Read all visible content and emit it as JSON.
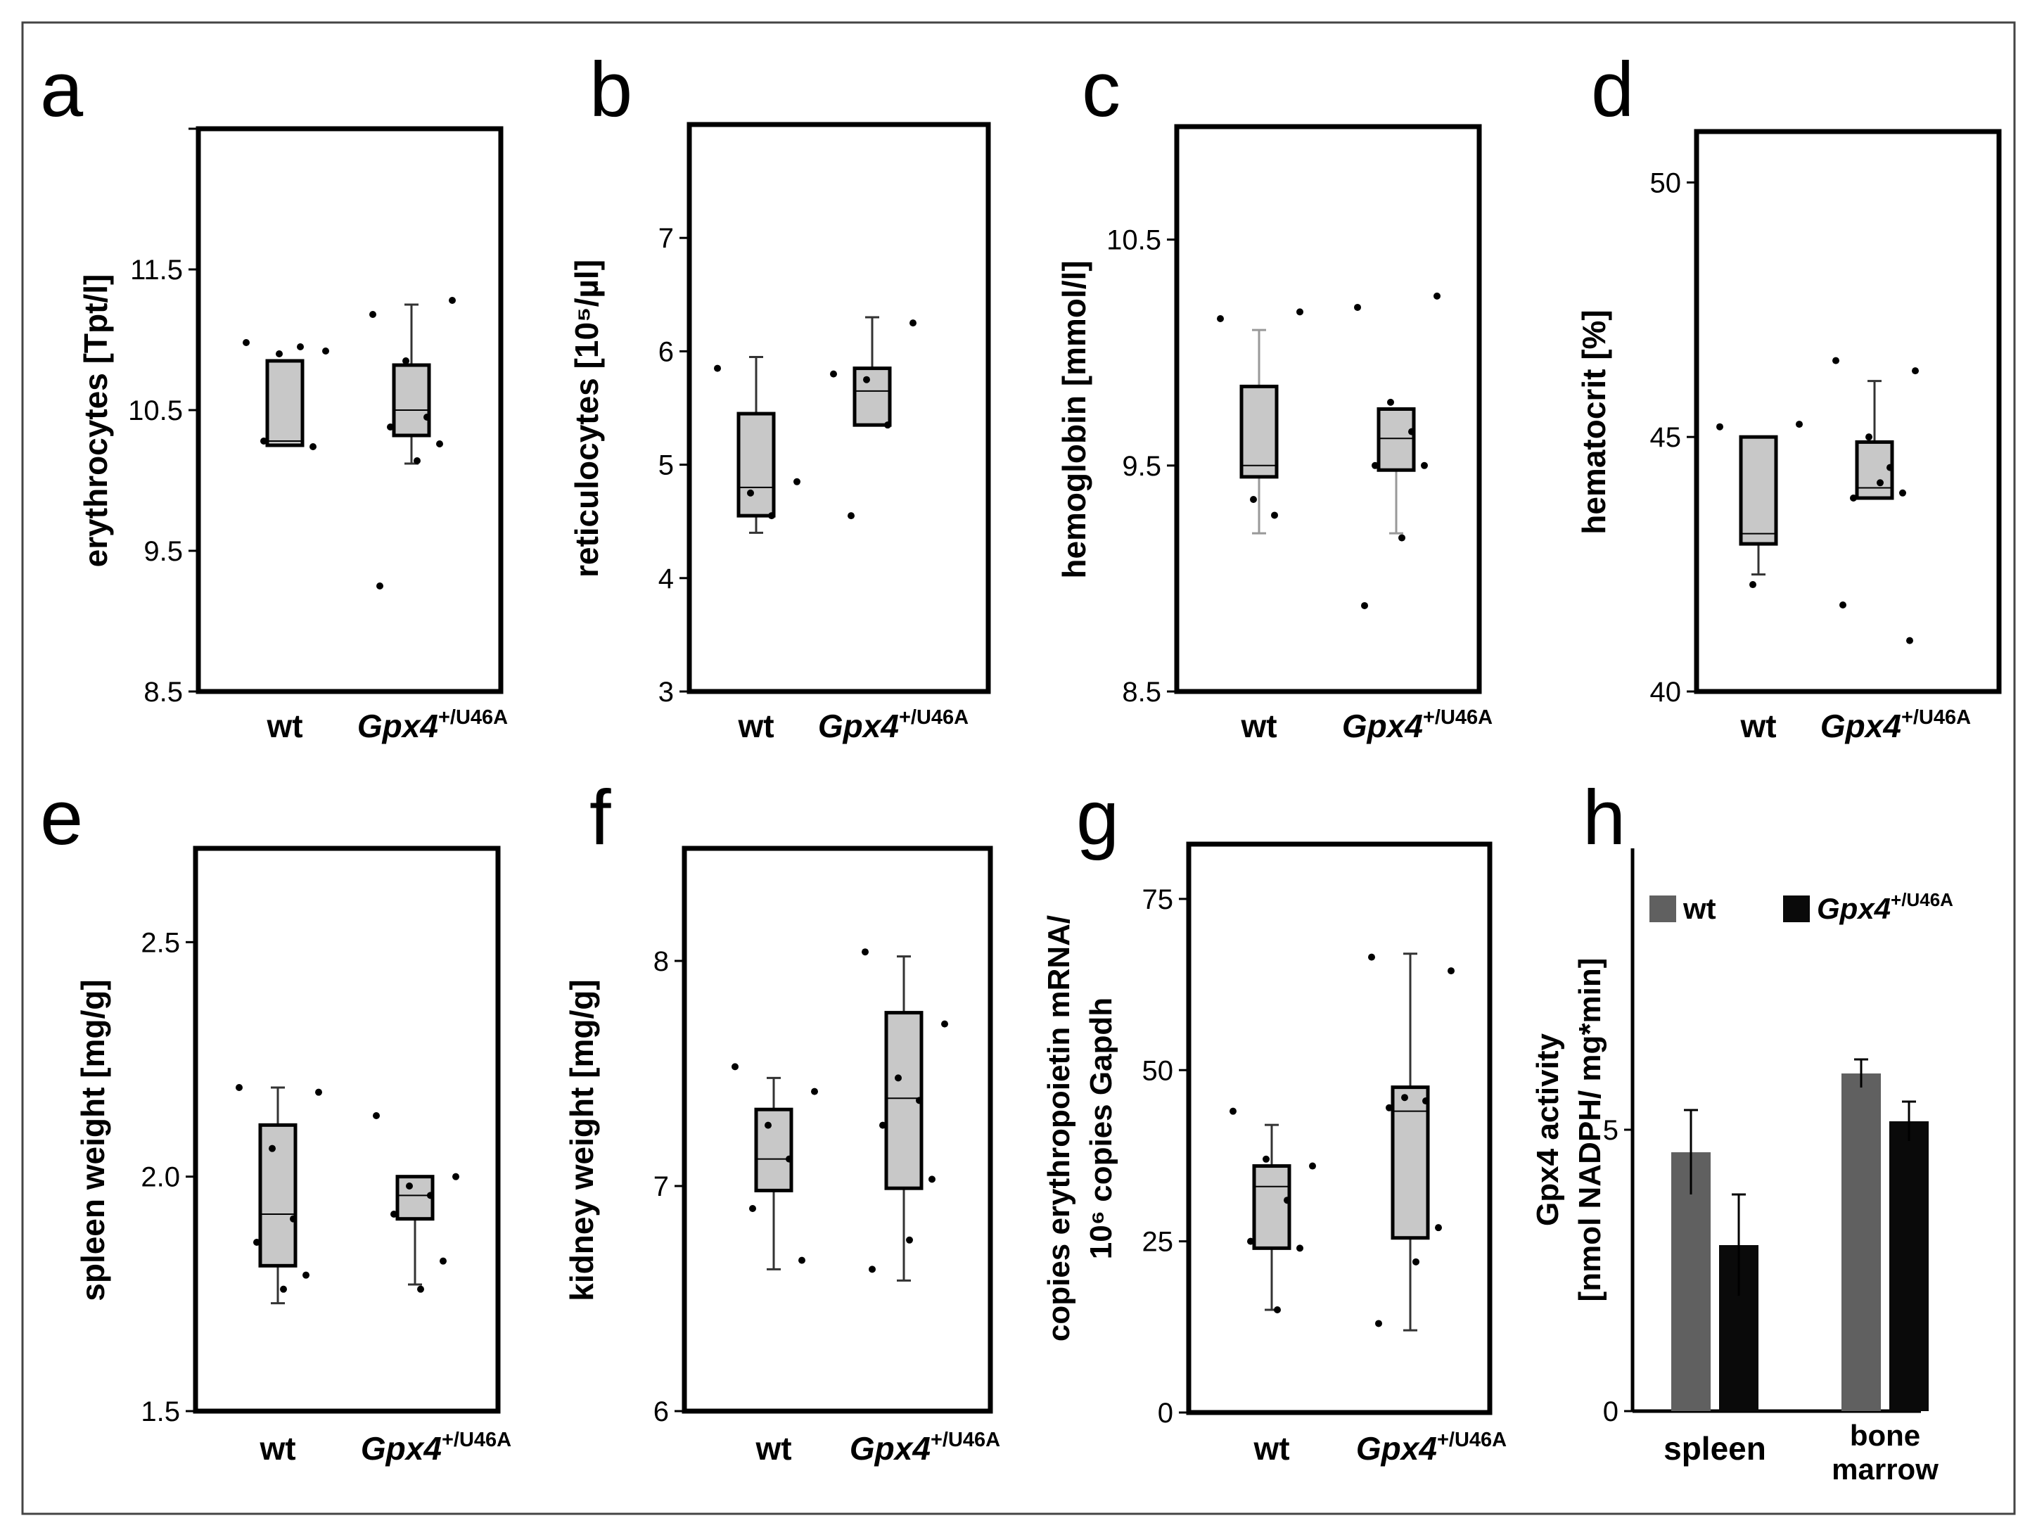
{
  "chart_data": [
    {
      "panel": "a",
      "type": "boxplot",
      "ylabel": "erythrocytes [Tpt/l]",
      "ylim": [
        8.5,
        12.5
      ],
      "yticks": [
        8.5,
        9.5,
        10.5,
        11.5
      ],
      "tick_decimals": 1,
      "extra_tick": 12.5,
      "groups": [
        {
          "label": "wt",
          "label_italic": false,
          "label_sup": "",
          "box": {
            "q1": 10.25,
            "median": 10.28,
            "q3": 10.85,
            "wlo": null,
            "whi": null
          },
          "points": [
            10.98,
            10.92,
            10.9,
            10.95,
            10.28,
            10.24
          ]
        },
        {
          "label": "Gpx4",
          "label_italic": true,
          "label_sup": "+/U46A",
          "box": {
            "q1": 10.32,
            "median": 10.5,
            "q3": 10.82,
            "wlo": 10.12,
            "whi": 11.25
          },
          "points": [
            11.18,
            11.28,
            10.85,
            10.45,
            10.38,
            10.26,
            10.14,
            9.25
          ]
        }
      ]
    },
    {
      "panel": "b",
      "type": "boxplot",
      "ylabel": "reticulocytes [10⁵/µl]",
      "ylim": [
        3,
        8
      ],
      "yticks": [
        3,
        4,
        5,
        6,
        7
      ],
      "tick_decimals": 0,
      "groups": [
        {
          "label": "wt",
          "label_italic": false,
          "label_sup": "",
          "box": {
            "q1": 4.55,
            "median": 4.8,
            "q3": 5.45,
            "wlo": 4.4,
            "whi": 5.95
          },
          "points": [
            5.85,
            4.85,
            4.75,
            4.55
          ]
        },
        {
          "label": "Gpx4",
          "label_italic": true,
          "label_sup": "+/U46A",
          "box": {
            "q1": 5.35,
            "median": 5.65,
            "q3": 5.85,
            "wlo": null,
            "whi": 6.3
          },
          "points": [
            5.8,
            6.25,
            5.75,
            5.35,
            4.55
          ]
        }
      ]
    },
    {
      "panel": "c",
      "type": "boxplot",
      "ylabel": "hemoglobin [mmol/l]",
      "ylim": [
        8.5,
        11
      ],
      "yticks": [
        8.5,
        9.5,
        10.5
      ],
      "tick_decimals": 1,
      "groups": [
        {
          "label": "wt",
          "label_italic": false,
          "label_sup": "",
          "box": {
            "q1": 9.45,
            "median": 9.5,
            "q3": 9.85,
            "wlo": 9.2,
            "whi": 10.1
          },
          "points": [
            10.15,
            10.18,
            9.35,
            9.28
          ]
        },
        {
          "label": "Gpx4",
          "label_italic": true,
          "label_sup": "+/U46A",
          "box": {
            "q1": 9.48,
            "median": 9.62,
            "q3": 9.75,
            "wlo": 9.2,
            "whi": null
          },
          "points": [
            10.2,
            10.25,
            9.78,
            9.65,
            9.5,
            9.5,
            9.18,
            8.88
          ]
        }
      ]
    },
    {
      "panel": "d",
      "type": "boxplot",
      "ylabel": "hematocrit [%]",
      "ylim": [
        40,
        51
      ],
      "yticks": [
        40,
        45,
        50
      ],
      "tick_decimals": 0,
      "groups": [
        {
          "label": "wt",
          "label_italic": false,
          "label_sup": "",
          "box": {
            "q1": 42.9,
            "median": 43.1,
            "q3": 45.0,
            "wlo": 42.3,
            "whi": null
          },
          "points": [
            45.2,
            45.25,
            42.1
          ]
        },
        {
          "label": "Gpx4",
          "label_italic": true,
          "label_sup": "+/U46A",
          "box": {
            "q1": 43.8,
            "median": 44.0,
            "q3": 44.9,
            "wlo": null,
            "whi": 46.1
          },
          "points": [
            46.5,
            46.3,
            45.0,
            44.4,
            43.8,
            43.9,
            44.1,
            41.7,
            41.0
          ]
        }
      ]
    },
    {
      "panel": "e",
      "type": "boxplot",
      "ylabel": "spleen weight [mg/g]",
      "ylim": [
        1.5,
        2.7
      ],
      "yticks": [
        1.5,
        2.0,
        2.5
      ],
      "tick_decimals": 1,
      "groups": [
        {
          "label": "wt",
          "label_italic": false,
          "label_sup": "",
          "box": {
            "q1": 1.81,
            "median": 1.92,
            "q3": 2.11,
            "wlo": 1.73,
            "whi": 2.19
          },
          "points": [
            2.19,
            2.18,
            2.06,
            1.91,
            1.86,
            1.79,
            1.76
          ]
        },
        {
          "label": "Gpx4",
          "label_italic": true,
          "label_sup": "+/U46A",
          "box": {
            "q1": 1.91,
            "median": 1.96,
            "q3": 2.0,
            "wlo": 1.77,
            "whi": null
          },
          "points": [
            2.13,
            2.0,
            1.98,
            1.96,
            1.92,
            1.82,
            1.76
          ]
        }
      ]
    },
    {
      "panel": "f",
      "type": "boxplot",
      "ylabel": "kidney weight [mg/g]",
      "ylim": [
        6,
        8.5
      ],
      "yticks": [
        6,
        7,
        8
      ],
      "tick_decimals": 0,
      "groups": [
        {
          "label": "wt",
          "label_italic": false,
          "label_sup": "",
          "box": {
            "q1": 6.98,
            "median": 7.12,
            "q3": 7.34,
            "wlo": 6.63,
            "whi": 7.48
          },
          "points": [
            7.53,
            7.42,
            7.27,
            7.12,
            6.9,
            6.67
          ]
        },
        {
          "label": "Gpx4",
          "label_italic": true,
          "label_sup": "+/U46A",
          "box": {
            "q1": 6.99,
            "median": 7.39,
            "q3": 7.77,
            "wlo": 6.58,
            "whi": 8.02
          },
          "points": [
            8.04,
            7.72,
            7.48,
            7.38,
            7.27,
            7.03,
            6.76,
            6.63
          ]
        }
      ]
    },
    {
      "panel": "g",
      "type": "boxplot",
      "ylabel_lines": [
        "copies erythropoietin mRNA/",
        "10⁶ copies Gapdh"
      ],
      "ylim": [
        0,
        83
      ],
      "yticks": [
        0,
        25,
        50,
        75
      ],
      "tick_decimals": 0,
      "groups": [
        {
          "label": "wt",
          "label_italic": false,
          "label_sup": "",
          "box": {
            "q1": 24,
            "median": 33,
            "q3": 36,
            "wlo": 15,
            "whi": 42
          },
          "points": [
            44,
            36,
            37,
            31,
            25,
            24,
            15
          ]
        },
        {
          "label": "Gpx4",
          "label_italic": true,
          "label_sup": "+/U46A",
          "box": {
            "q1": 25.5,
            "median": 44,
            "q3": 47.5,
            "wlo": 12,
            "whi": 67
          },
          "points": [
            66.5,
            64.5,
            46,
            45.5,
            44.5,
            27,
            22,
            13
          ]
        }
      ]
    },
    {
      "panel": "h",
      "type": "bar",
      "ylabel_lines": [
        "Gpx4 activity",
        "[nmol NADPH/ mg*min]"
      ],
      "ylim": [
        0,
        10
      ],
      "yticks": [
        0,
        5
      ],
      "tick_decimals": 0,
      "category_lines": [
        [
          "spleen"
        ],
        [
          "bone",
          "marrow"
        ]
      ],
      "series": [
        {
          "name": "wt",
          "name_italic": false,
          "name_sup": "",
          "color": "#606060",
          "values": [
            4.6,
            6.0
          ],
          "errors": [
            0.75,
            0.25
          ]
        },
        {
          "name": "Gpx4",
          "name_italic": true,
          "name_sup": "+/U46A",
          "color": "#0a0a0a",
          "values": [
            2.95,
            5.15
          ],
          "errors": [
            0.9,
            0.35
          ]
        }
      ]
    }
  ]
}
